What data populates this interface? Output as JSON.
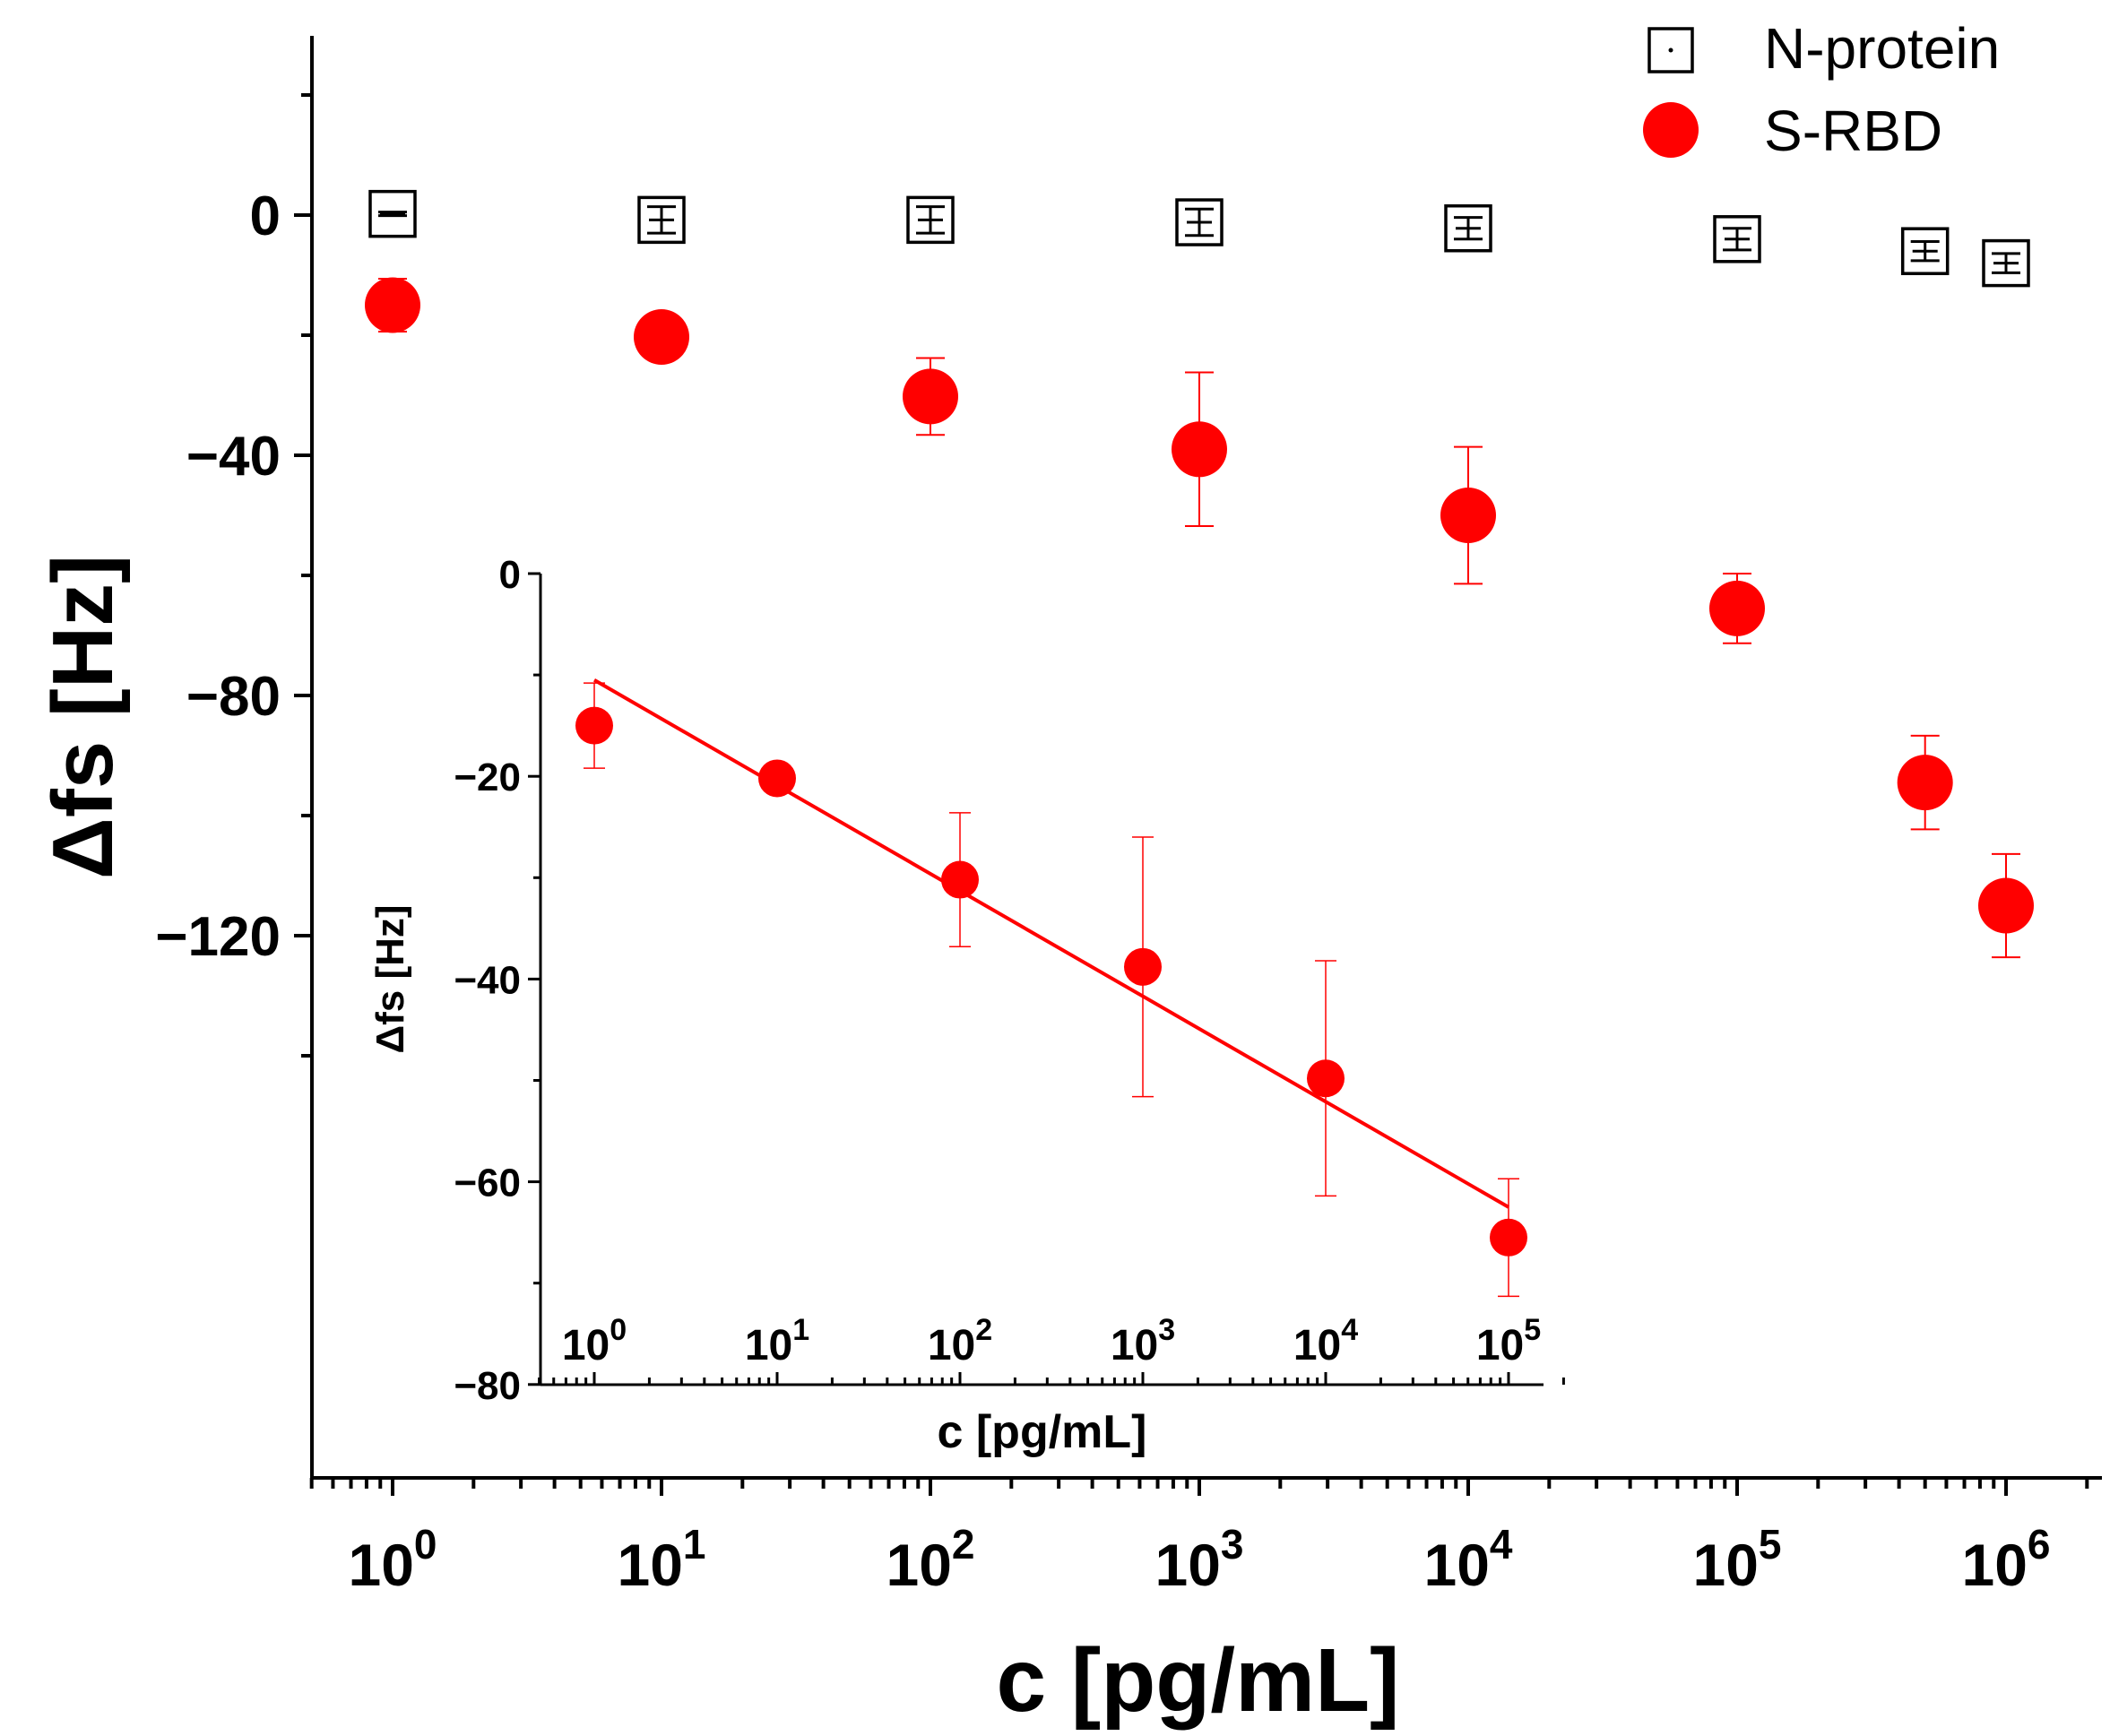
{
  "chart_data": [
    {
      "type": "scatter",
      "xlabel": "c [pg/mL]",
      "ylabel": "Δfs [Hz]",
      "x_scale": "log",
      "xlim": [
        0.5,
        2000000
      ],
      "ylim": [
        -140,
        20
      ],
      "x_ticks": [
        {
          "value": 1,
          "base": "10",
          "exp": "0"
        },
        {
          "value": 10,
          "base": "10",
          "exp": "1"
        },
        {
          "value": 100,
          "base": "10",
          "exp": "2"
        },
        {
          "value": 1000,
          "base": "10",
          "exp": "3"
        },
        {
          "value": 10000,
          "base": "10",
          "exp": "4"
        },
        {
          "value": 100000,
          "base": "10",
          "exp": "5"
        },
        {
          "value": 1000000,
          "base": "10",
          "exp": "6"
        }
      ],
      "y_ticks": [
        {
          "value": 0,
          "label": "0"
        },
        {
          "value": -40,
          "label": "−40"
        },
        {
          "value": -80,
          "label": "−80"
        },
        {
          "value": -120,
          "label": "−120"
        }
      ],
      "legend": {
        "position": "top-right"
      },
      "series": [
        {
          "name": "N-protein",
          "marker": "open-square",
          "color": "#000000",
          "points": [
            {
              "x": 1,
              "y": 0.2,
              "err": 0.3
            },
            {
              "x": 10,
              "y": -0.8,
              "err": 2.2
            },
            {
              "x": 100,
              "y": -0.8,
              "err": 2.2
            },
            {
              "x": 1000,
              "y": -1.2,
              "err": 2.2
            },
            {
              "x": 10000,
              "y": -2.2,
              "err": 1.8
            },
            {
              "x": 100000,
              "y": -4,
              "err": 1.8
            },
            {
              "x": 500000,
              "y": -6,
              "err": 1.6
            },
            {
              "x": 1000000,
              "y": -8,
              "err": 1.6
            }
          ]
        },
        {
          "name": "S-RBD",
          "marker": "filled-circle",
          "color": "#ff0000",
          "points": [
            {
              "x": 1,
              "y": -15,
              "err": 4.4
            },
            {
              "x": 10,
              "y": -20.3,
              "err": 1.5
            },
            {
              "x": 100,
              "y": -30.2,
              "err": 6.4
            },
            {
              "x": 1000,
              "y": -39,
              "err": 12.8
            },
            {
              "x": 10000,
              "y": -50,
              "err": 11.4
            },
            {
              "x": 100000,
              "y": -65.5,
              "err": 5.8
            },
            {
              "x": 500000,
              "y": -94.5,
              "err": 7.8
            },
            {
              "x": 1000000,
              "y": -115,
              "err": 8.6
            }
          ]
        }
      ]
    },
    {
      "type": "scatter",
      "xlabel": "c [pg/mL]",
      "ylabel": "Δfs [Hz]",
      "x_scale": "log",
      "xlim": [
        0.5,
        200000
      ],
      "ylim": [
        -80,
        0
      ],
      "x_ticks": [
        {
          "value": 1,
          "base": "10",
          "exp": "0"
        },
        {
          "value": 10,
          "base": "10",
          "exp": "1"
        },
        {
          "value": 100,
          "base": "10",
          "exp": "2"
        },
        {
          "value": 1000,
          "base": "10",
          "exp": "3"
        },
        {
          "value": 10000,
          "base": "10",
          "exp": "4"
        },
        {
          "value": 100000,
          "base": "10",
          "exp": "5"
        }
      ],
      "y_ticks": [
        {
          "value": 0,
          "label": "0"
        },
        {
          "value": -20,
          "label": "−20"
        },
        {
          "value": -40,
          "label": "−40"
        },
        {
          "value": -60,
          "label": "−60"
        },
        {
          "value": -80,
          "label": "−80"
        }
      ],
      "series": [
        {
          "name": "S-RBD",
          "marker": "filled-circle",
          "color": "#ff0000",
          "points": [
            {
              "x": 1,
              "y": -15,
              "err": 4.2
            },
            {
              "x": 10,
              "y": -20.2,
              "err": 0.3
            },
            {
              "x": 100,
              "y": -30.2,
              "err": 6.6
            },
            {
              "x": 1000,
              "y": -38.8,
              "err": 12.8
            },
            {
              "x": 10000,
              "y": -49.8,
              "err": 11.6
            },
            {
              "x": 100000,
              "y": -65.5,
              "err": 5.8
            }
          ]
        }
      ],
      "fit_line": {
        "x": [
          1,
          100000
        ],
        "y": [
          -10.5,
          -62.5
        ],
        "color": "#ff0000"
      }
    }
  ]
}
